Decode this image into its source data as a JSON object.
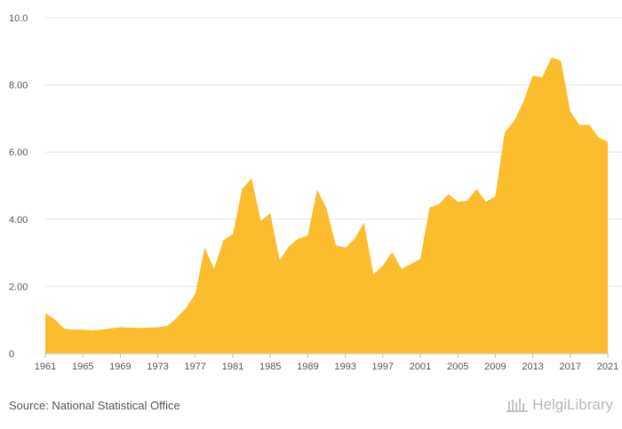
{
  "chart_data": {
    "type": "area",
    "title": "",
    "xlabel": "",
    "ylabel": "",
    "ylim": [
      0,
      10
    ],
    "xlim": [
      1961,
      2021
    ],
    "y_ticks": [
      "0",
      "2.00",
      "4.00",
      "6.00",
      "8.00",
      "10.0"
    ],
    "x_ticks": [
      "1961",
      "1965",
      "1969",
      "1973",
      "1977",
      "1981",
      "1985",
      "1989",
      "1993",
      "1997",
      "2001",
      "2005",
      "2009",
      "2013",
      "2017",
      "2021"
    ],
    "fill_color": "#fbbd2e",
    "grid": true,
    "series": [
      {
        "name": "",
        "x": [
          1961,
          1962,
          1963,
          1964,
          1965,
          1966,
          1967,
          1968,
          1969,
          1970,
          1971,
          1972,
          1973,
          1974,
          1975,
          1976,
          1977,
          1978,
          1979,
          1980,
          1981,
          1982,
          1983,
          1984,
          1985,
          1986,
          1987,
          1988,
          1989,
          1990,
          1991,
          1992,
          1993,
          1994,
          1995,
          1996,
          1997,
          1998,
          1999,
          2000,
          2001,
          2002,
          2003,
          2004,
          2005,
          2006,
          2007,
          2008,
          2009,
          2010,
          2011,
          2012,
          2013,
          2014,
          2015,
          2016,
          2017,
          2018,
          2019,
          2020,
          2021
        ],
        "values": [
          1.2,
          1.02,
          0.74,
          0.71,
          0.71,
          0.69,
          0.71,
          0.75,
          0.78,
          0.77,
          0.76,
          0.77,
          0.78,
          0.82,
          1.05,
          1.35,
          1.78,
          3.15,
          2.52,
          3.38,
          3.55,
          4.9,
          5.22,
          3.95,
          4.18,
          2.78,
          3.2,
          3.42,
          3.52,
          4.88,
          4.32,
          3.22,
          3.15,
          3.42,
          3.9,
          2.35,
          2.62,
          3.02,
          2.52,
          2.67,
          2.82,
          4.35,
          4.45,
          4.75,
          4.52,
          4.55,
          4.9,
          4.52,
          4.68,
          6.58,
          6.92,
          7.5,
          8.28,
          8.22,
          8.82,
          8.72,
          7.22,
          6.8,
          6.82,
          6.45,
          6.3
        ]
      }
    ]
  },
  "footer": {
    "source": "Source: National Statistical Office",
    "brand": "HelgiLibrary"
  }
}
